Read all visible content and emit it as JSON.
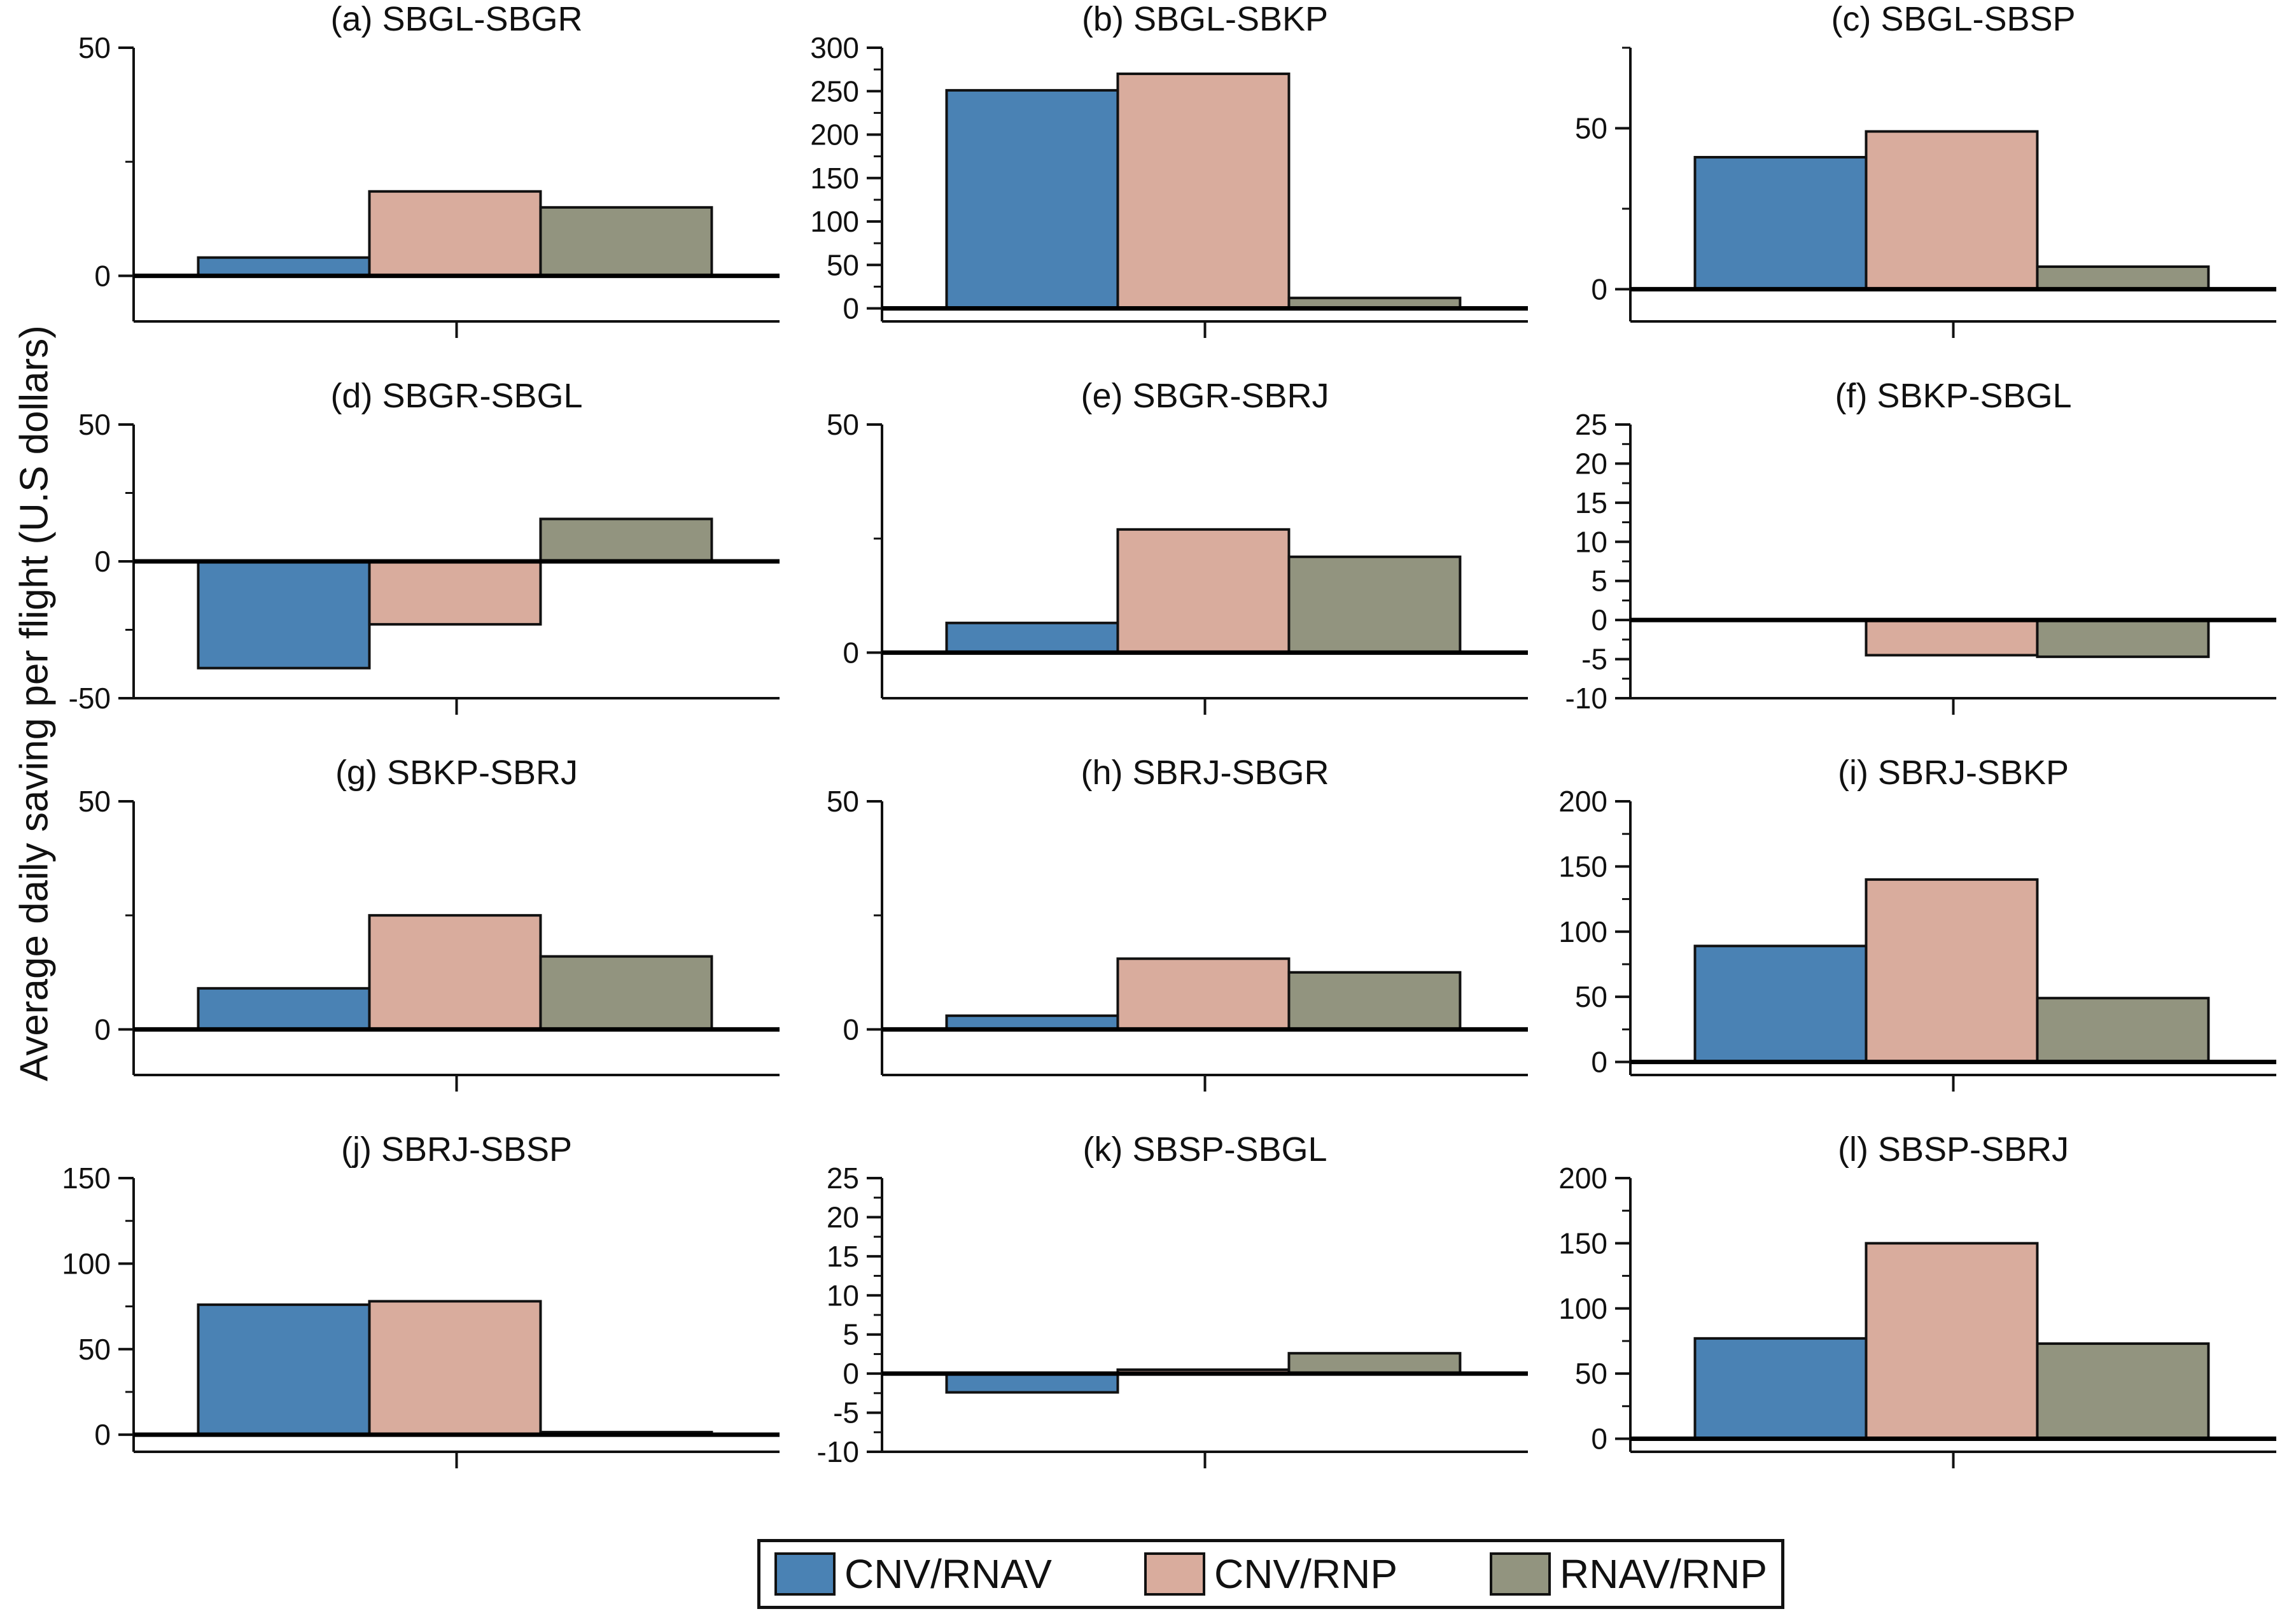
{
  "figure": {
    "ylabel": "Average daily saving per flight (U.S dollars)",
    "background": "#ffffff"
  },
  "chart_data": {
    "type": "bar",
    "grid_layout": "4 rows x 3 columns of subplots",
    "grid": "off",
    "legend_position": "bottom-center",
    "xlabel": "",
    "ylabel": "Average daily saving per flight (U.S dollars)",
    "series_names": [
      "CNV/RNAV",
      "CNV/RNP",
      "RNAV/RNP"
    ],
    "series_colors": [
      "#4a82b4",
      "#d9ac9d",
      "#92947f"
    ],
    "bar_edge_color": "#111111",
    "subplots": [
      {
        "id": "a",
        "title": "(a) SBGL-SBGR",
        "values": [
          4,
          18.5,
          15
        ],
        "ymin": -10,
        "ymax": 50,
        "yticks": [
          0,
          50
        ],
        "yminor": [
          25
        ]
      },
      {
        "id": "b",
        "title": "(b) SBGL-SBKP",
        "values": [
          251,
          270,
          12
        ],
        "ymin": -15,
        "ymax": 300,
        "yticks": [
          0,
          50,
          100,
          150,
          200,
          250,
          300
        ],
        "yminor": [
          25,
          75,
          125,
          175,
          225,
          275
        ]
      },
      {
        "id": "c",
        "title": "(c) SBGL-SBSP",
        "values": [
          41,
          49,
          7
        ],
        "ymin": -10,
        "ymax": 75,
        "yticks": [
          0,
          50
        ],
        "yminor": [
          25,
          75
        ]
      },
      {
        "id": "d",
        "title": "(d) SBGR-SBGL",
        "values": [
          -39,
          -23,
          15.5
        ],
        "ymin": -50,
        "ymax": 50,
        "yticks": [
          -50,
          0,
          50
        ],
        "yminor": [
          -25,
          25
        ]
      },
      {
        "id": "e",
        "title": "(e) SBGR-SBRJ",
        "values": [
          6.5,
          27,
          21
        ],
        "ymin": -10,
        "ymax": 50,
        "yticks": [
          0,
          50
        ],
        "yminor": [
          25
        ]
      },
      {
        "id": "f",
        "title": "(f) SBKP-SBGL",
        "values": [
          0,
          -4.5,
          -4.7
        ],
        "ymin": -10,
        "ymax": 25,
        "yticks": [
          -10,
          -5,
          0,
          5,
          10,
          15,
          20,
          25
        ],
        "yminor": [
          -7.5,
          -2.5,
          2.5,
          7.5,
          12.5,
          17.5,
          22.5
        ]
      },
      {
        "id": "g",
        "title": "(g) SBKP-SBRJ",
        "values": [
          9,
          25,
          16
        ],
        "ymin": -10,
        "ymax": 50,
        "yticks": [
          0,
          50
        ],
        "yminor": [
          25
        ]
      },
      {
        "id": "h",
        "title": "(h) SBRJ-SBGR",
        "values": [
          3,
          15.5,
          12.5
        ],
        "ymin": -10,
        "ymax": 50,
        "yticks": [
          0,
          50
        ],
        "yminor": [
          25
        ]
      },
      {
        "id": "i",
        "title": "(i) SBRJ-SBKP",
        "values": [
          89,
          140,
          49
        ],
        "ymin": -10,
        "ymax": 200,
        "yticks": [
          0,
          50,
          100,
          150,
          200
        ],
        "yminor": [
          25,
          75,
          125,
          175
        ]
      },
      {
        "id": "j",
        "title": "(j) SBRJ-SBSP",
        "values": [
          76,
          78,
          1.5
        ],
        "ymin": -10,
        "ymax": 150,
        "yticks": [
          0,
          50,
          100,
          150
        ],
        "yminor": [
          25,
          75,
          125
        ]
      },
      {
        "id": "k",
        "title": "(k) SBSP-SBGL",
        "values": [
          -2.4,
          0.5,
          2.6
        ],
        "ymin": -10,
        "ymax": 25,
        "yticks": [
          -10,
          -5,
          0,
          5,
          10,
          15,
          20,
          25
        ],
        "yminor": [
          -7.5,
          -2.5,
          2.5,
          7.5,
          12.5,
          17.5,
          22.5
        ]
      },
      {
        "id": "l",
        "title": "(l) SBSP-SBRJ",
        "values": [
          77,
          150,
          73
        ],
        "ymin": -10,
        "ymax": 200,
        "yticks": [
          0,
          50,
          100,
          150,
          200
        ],
        "yminor": [
          25,
          75,
          125,
          175
        ]
      }
    ],
    "legend": {
      "entries": [
        {
          "label": "CNV/RNAV",
          "color": "#4a82b4"
        },
        {
          "label": "CNV/RNP",
          "color": "#d9ac9d"
        },
        {
          "label": "RNAV/RNP",
          "color": "#92947f"
        }
      ]
    }
  }
}
